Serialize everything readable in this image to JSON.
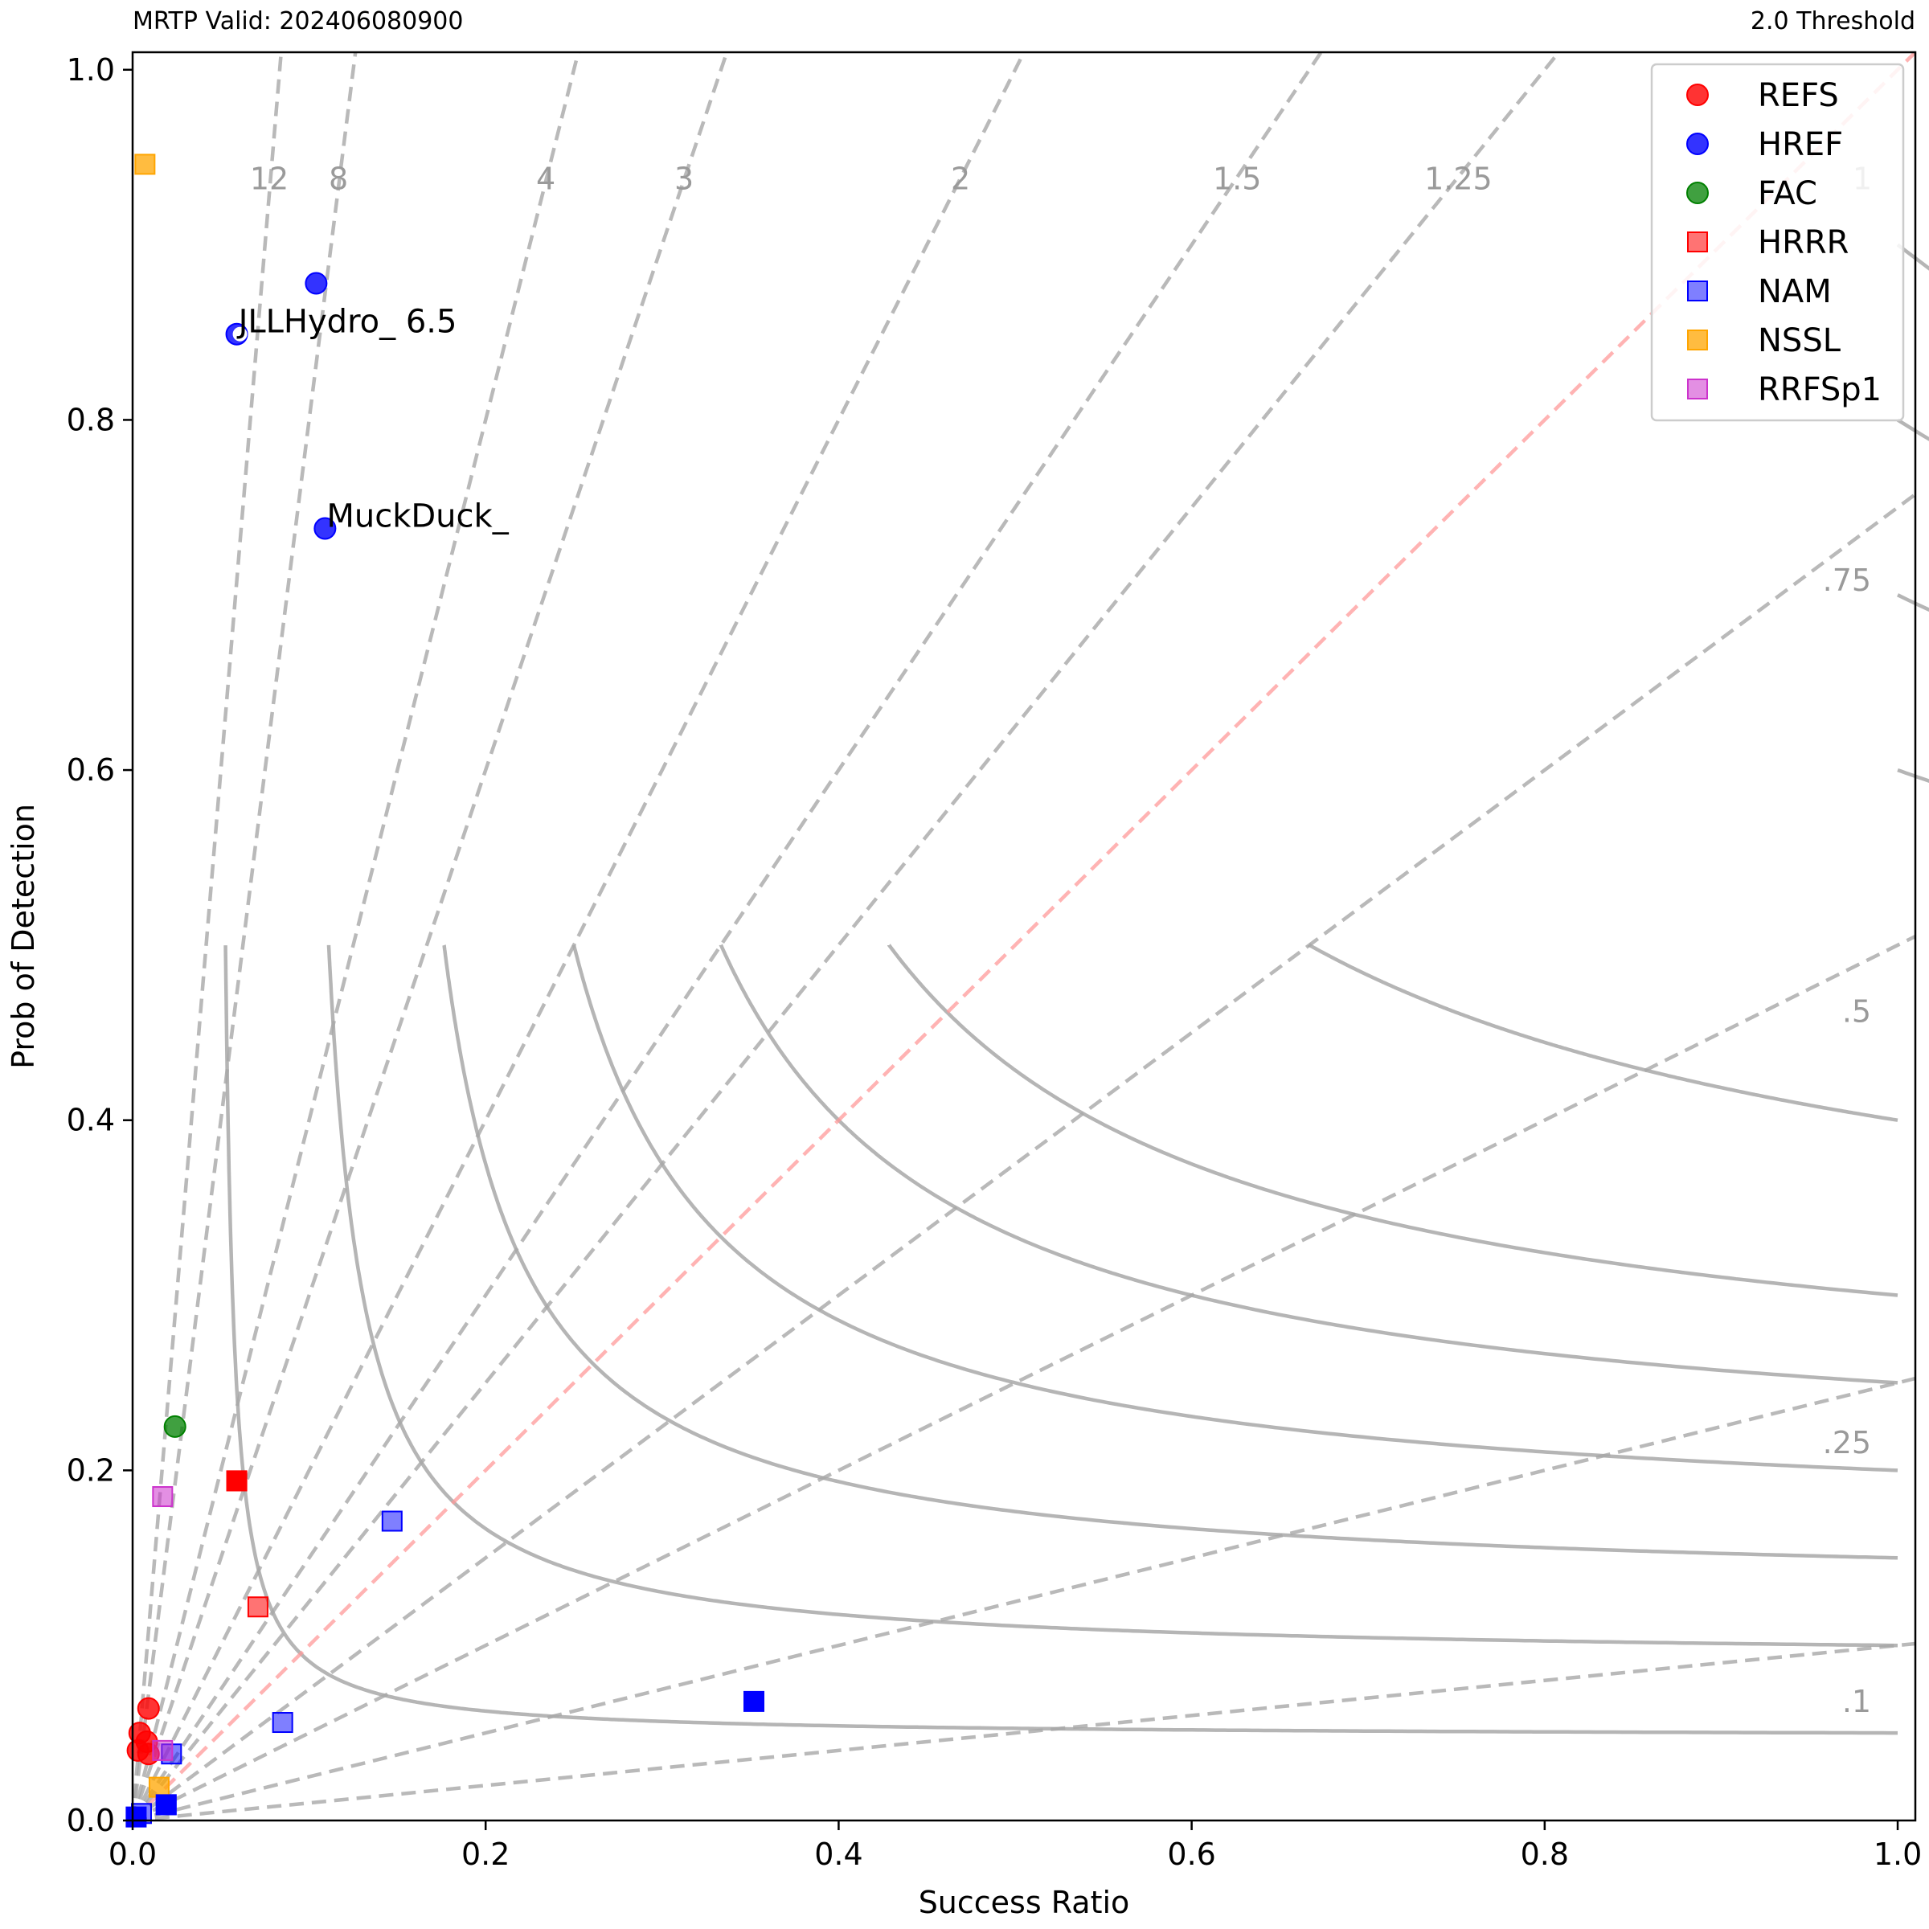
{
  "header": {
    "left": "MRTP Valid: 202406080900",
    "right": "2.0 Threshold"
  },
  "chart_data": {
    "type": "scatter",
    "xlabel": "Success Ratio",
    "ylabel": "Prob of Detection",
    "xlim": [
      0,
      1.01
    ],
    "ylim": [
      0,
      1.01
    ],
    "xticks": [
      "0.0",
      "0.2",
      "0.4",
      "0.6",
      "0.8",
      "1.0"
    ],
    "yticks": [
      "0.0",
      "0.2",
      "0.4",
      "0.6",
      "0.8",
      "1.0"
    ],
    "legend_placement": "top-right",
    "grid": false,
    "csi_lines": [
      0.05,
      0.1,
      0.15,
      0.2,
      0.25,
      0.3,
      0.4,
      0.5,
      0.6,
      0.7,
      0.8,
      0.9
    ],
    "bias_lines": [
      {
        "value": 12,
        "label": "12"
      },
      {
        "value": 8,
        "label": "8"
      },
      {
        "value": 4,
        "label": "4"
      },
      {
        "value": 3,
        "label": "3"
      },
      {
        "value": 2,
        "label": "2"
      },
      {
        "value": 1.5,
        "label": "1.5"
      },
      {
        "value": 1.25,
        "label": "1.25"
      },
      {
        "value": 1,
        "label": "1"
      },
      {
        "value": 0.75,
        "label": ".75"
      },
      {
        "value": 0.5,
        "label": ".5"
      },
      {
        "value": 0.25,
        "label": ".25"
      },
      {
        "value": 0.1,
        "label": ".1"
      }
    ],
    "series": [
      {
        "name": "REFS",
        "marker": "circle",
        "color": "#ff0000",
        "alpha": 0.8,
        "points": [
          [
            0.009,
            0.064
          ],
          [
            0.004,
            0.05
          ],
          [
            0.008,
            0.045
          ],
          [
            0.003,
            0.04
          ],
          [
            0.009,
            0.038
          ]
        ]
      },
      {
        "name": "HREF",
        "marker": "circle",
        "color": "#0000ff",
        "alpha": 0.8,
        "points": [
          [
            0.104,
            0.878
          ],
          [
            0.059,
            0.849
          ],
          [
            0.109,
            0.738
          ]
        ]
      },
      {
        "name": "FAC",
        "marker": "circle",
        "color": "#008000",
        "alpha": 0.75,
        "points": [
          [
            0.024,
            0.225
          ]
        ]
      },
      {
        "name": "HRRR",
        "marker": "square",
        "color": "#ff0000",
        "alpha": 0.55,
        "points": [
          [
            0.059,
            0.194
          ],
          [
            0.071,
            0.122
          ]
        ]
      },
      {
        "name": "NAM",
        "marker": "square",
        "color": "#0000ff",
        "alpha": 0.5,
        "points": [
          [
            0.147,
            0.171
          ],
          [
            0.085,
            0.056
          ],
          [
            0.022,
            0.038
          ],
          [
            0.019,
            0.009
          ],
          [
            0.005,
            0.004
          ]
        ]
      },
      {
        "name": "NSSL",
        "marker": "square",
        "color": "#ffa500",
        "alpha": 0.75,
        "points": [
          [
            0.007,
            0.946
          ],
          [
            0.015,
            0.019
          ]
        ]
      },
      {
        "name": "RRFSp1",
        "marker": "square",
        "color": "#cc33cc",
        "alpha": 0.55,
        "points": [
          [
            0.017,
            0.185
          ],
          [
            0.017,
            0.04
          ]
        ]
      }
    ],
    "solid_points": [
      {
        "marker": "square",
        "color": "#0000ff",
        "points": [
          [
            0.352,
            0.068
          ],
          [
            0.019,
            0.009
          ],
          [
            0.002,
            0.002
          ]
        ]
      },
      {
        "marker": "square",
        "color": "#ff0000",
        "points": [
          [
            0.059,
            0.194
          ]
        ]
      }
    ],
    "annotations": [
      {
        "text": "JLLHydro_ 6.5",
        "x": 0.059,
        "y": 0.849
      },
      {
        "text": "MuckDuck_",
        "x": 0.109,
        "y": 0.738
      }
    ]
  }
}
